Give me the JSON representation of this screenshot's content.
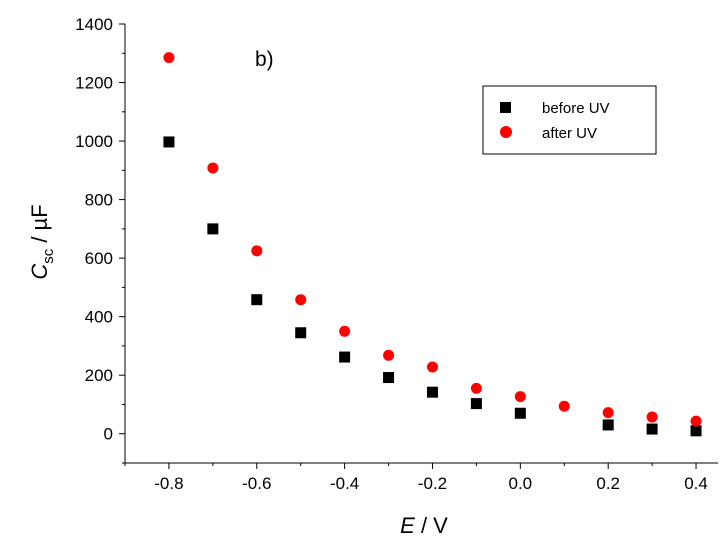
{
  "chart_data": {
    "type": "scatter",
    "annotation": "b)",
    "xlabel": {
      "symbol": "E",
      "unit": " / V"
    },
    "ylabel": {
      "symbol": "C",
      "subscript": "sc",
      "unit": " / µF"
    },
    "xlim": [
      -0.9,
      0.45
    ],
    "ylim": [
      -100,
      1400
    ],
    "xticks": [
      -0.8,
      -0.6,
      -0.4,
      -0.2,
      0.0,
      0.2,
      0.4
    ],
    "xtick_labels": [
      "-0.8",
      "-0.6",
      "-0.4",
      "-0.2",
      "0.0",
      "0.2",
      "0.4"
    ],
    "yticks": [
      0,
      200,
      400,
      600,
      800,
      1000,
      1200,
      1400
    ],
    "ytick_labels": [
      "0",
      "200",
      "400",
      "600",
      "800",
      "1000",
      "1200",
      "1400"
    ],
    "legend_position": "top-right",
    "series": [
      {
        "name": "before UV",
        "marker": "square",
        "color": "#000000",
        "x": [
          -0.8,
          -0.7,
          -0.6,
          -0.5,
          -0.4,
          -0.3,
          -0.2,
          -0.1,
          0.0,
          0.2,
          0.3,
          0.4
        ],
        "y": [
          997,
          700,
          458,
          345,
          262,
          192,
          142,
          103,
          70,
          30,
          16,
          10
        ]
      },
      {
        "name": "after UV",
        "marker": "circle",
        "color": "#ff0000",
        "x": [
          -0.8,
          -0.7,
          -0.6,
          -0.5,
          -0.4,
          -0.3,
          -0.2,
          -0.1,
          0.0,
          0.1,
          0.2,
          0.3,
          0.4
        ],
        "y": [
          1285,
          908,
          625,
          458,
          350,
          268,
          228,
          155,
          127,
          94,
          72,
          57,
          43
        ]
      }
    ]
  }
}
